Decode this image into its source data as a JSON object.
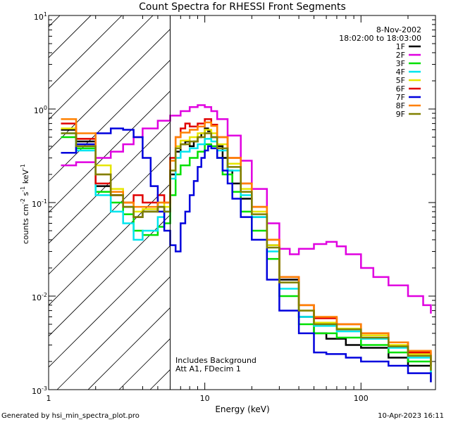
{
  "chart_data": {
    "type": "line",
    "title": "Count Spectra for RHESSI Front Segments",
    "xlabel": "Energy (keV)",
    "ylabel_parts": [
      "counts cm",
      "-2",
      " s",
      "-1",
      " keV",
      "-1"
    ],
    "xscale": "log",
    "yscale": "log",
    "xlim": [
      1,
      300
    ],
    "ylim": [
      0.001,
      10
    ],
    "x_tick_labels": [
      "1",
      "10",
      "100"
    ],
    "y_tick_bases": [
      "10",
      "10",
      "10",
      "10",
      "10"
    ],
    "y_tick_exponents": [
      "-3",
      "-2",
      "-1",
      "0",
      "1"
    ],
    "attenuator_boundary_kev": 6,
    "legend_header": [
      "8-Nov-2002",
      "18:02:00 to 18:03:00"
    ],
    "annotations": [
      "Includes Background",
      "Att A1, FDecim  1"
    ],
    "series": [
      {
        "name": "1F",
        "color": "#000000",
        "x": [
          1.2,
          1.5,
          2,
          2.5,
          3,
          3.5,
          4,
          5,
          5.5,
          6,
          6.5,
          7,
          7.5,
          8,
          8.5,
          9,
          9.5,
          10,
          10.5,
          11,
          12,
          13,
          14,
          15,
          17,
          20,
          25,
          30,
          40,
          50,
          60,
          80,
          100,
          150,
          200,
          280
        ],
        "y": [
          0.6,
          0.45,
          0.15,
          0.12,
          0.09,
          0.07,
          0.08,
          0.09,
          0.08,
          0.2,
          0.35,
          0.42,
          0.45,
          0.4,
          0.45,
          0.5,
          0.55,
          0.62,
          0.58,
          0.5,
          0.4,
          0.3,
          0.22,
          0.16,
          0.11,
          0.07,
          0.035,
          0.015,
          0.006,
          0.004,
          0.0035,
          0.003,
          0.0028,
          0.0022,
          0.0018,
          0.0012
        ]
      },
      {
        "name": "2F",
        "color": "#e000e0",
        "x": [
          1.2,
          1.5,
          2,
          2.5,
          3,
          3.5,
          4,
          5,
          6,
          7,
          8,
          9,
          10,
          11,
          12,
          14,
          17,
          20,
          25,
          30,
          35,
          40,
          50,
          60,
          70,
          80,
          100,
          120,
          150,
          200,
          250,
          280
        ],
        "y": [
          0.25,
          0.27,
          0.3,
          0.35,
          0.42,
          0.5,
          0.62,
          0.75,
          0.85,
          0.95,
          1.05,
          1.1,
          1.05,
          0.95,
          0.78,
          0.52,
          0.28,
          0.14,
          0.06,
          0.032,
          0.028,
          0.032,
          0.036,
          0.038,
          0.034,
          0.028,
          0.02,
          0.016,
          0.013,
          0.01,
          0.008,
          0.0065
        ]
      },
      {
        "name": "3F",
        "color": "#00e000",
        "x": [
          1.2,
          1.5,
          2,
          2.5,
          3,
          3.5,
          4,
          5,
          5.5,
          6,
          6.5,
          7,
          8,
          9,
          10,
          11,
          12,
          13,
          15,
          17,
          20,
          25,
          30,
          40,
          50,
          70,
          100,
          150,
          200,
          280
        ],
        "y": [
          0.5,
          0.38,
          0.13,
          0.1,
          0.075,
          0.05,
          0.045,
          0.055,
          0.06,
          0.12,
          0.2,
          0.25,
          0.3,
          0.35,
          0.42,
          0.4,
          0.3,
          0.2,
          0.13,
          0.08,
          0.05,
          0.025,
          0.01,
          0.005,
          0.004,
          0.0036,
          0.003,
          0.0025,
          0.002,
          0.0015
        ]
      },
      {
        "name": "4F",
        "color": "#00e5ee",
        "x": [
          1.2,
          1.5,
          2,
          2.5,
          3,
          3.5,
          4,
          5,
          5.5,
          6,
          6.5,
          7,
          8,
          9,
          10,
          11,
          12,
          14,
          17,
          20,
          25,
          30,
          40,
          50,
          70,
          100,
          150,
          200,
          280
        ],
        "y": [
          0.55,
          0.36,
          0.12,
          0.08,
          0.06,
          0.04,
          0.05,
          0.07,
          0.08,
          0.18,
          0.3,
          0.35,
          0.38,
          0.42,
          0.48,
          0.45,
          0.36,
          0.22,
          0.12,
          0.07,
          0.03,
          0.012,
          0.006,
          0.0048,
          0.0042,
          0.0035,
          0.0028,
          0.0022,
          0.0015
        ]
      },
      {
        "name": "5F",
        "color": "#e6e600",
        "x": [
          1.2,
          1.5,
          2,
          2.5,
          3,
          3.5,
          4,
          5,
          5.5,
          6,
          6.5,
          7,
          8,
          9,
          10,
          11,
          12,
          14,
          17,
          20,
          25,
          30,
          40,
          50,
          70,
          100,
          150,
          200,
          280
        ],
        "y": [
          0.62,
          0.48,
          0.25,
          0.14,
          0.1,
          0.08,
          0.085,
          0.1,
          0.09,
          0.22,
          0.4,
          0.46,
          0.5,
          0.55,
          0.6,
          0.55,
          0.42,
          0.26,
          0.14,
          0.08,
          0.035,
          0.014,
          0.007,
          0.0052,
          0.0045,
          0.0038,
          0.003,
          0.0024,
          0.0016
        ]
      },
      {
        "name": "6F",
        "color": "#e00000",
        "x": [
          1.2,
          1.5,
          2,
          2.5,
          3,
          3.5,
          4,
          5,
          5.5,
          6,
          6.5,
          7,
          7.5,
          8,
          9,
          10,
          11,
          12,
          14,
          17,
          20,
          25,
          30,
          40,
          50,
          70,
          100,
          150,
          200,
          280
        ],
        "y": [
          0.7,
          0.48,
          0.16,
          0.12,
          0.1,
          0.12,
          0.1,
          0.12,
          0.1,
          0.3,
          0.5,
          0.62,
          0.7,
          0.65,
          0.7,
          0.78,
          0.68,
          0.5,
          0.3,
          0.16,
          0.09,
          0.04,
          0.016,
          0.008,
          0.0058,
          0.005,
          0.004,
          0.0032,
          0.0025,
          0.0018
        ]
      },
      {
        "name": "7F",
        "color": "#0000dd",
        "x": [
          1.2,
          1.5,
          2,
          2.5,
          3,
          3.5,
          4,
          4.5,
          5,
          5.5,
          6,
          6.5,
          7,
          7.5,
          8,
          8.5,
          9,
          9.5,
          10,
          10.5,
          11,
          12,
          13,
          14,
          15,
          17,
          20,
          25,
          30,
          40,
          50,
          60,
          80,
          100,
          150,
          200,
          280
        ],
        "y": [
          0.34,
          0.42,
          0.55,
          0.62,
          0.6,
          0.5,
          0.3,
          0.15,
          0.08,
          0.05,
          0.035,
          0.03,
          0.06,
          0.08,
          0.12,
          0.17,
          0.24,
          0.3,
          0.36,
          0.4,
          0.38,
          0.3,
          0.22,
          0.16,
          0.11,
          0.07,
          0.04,
          0.015,
          0.007,
          0.004,
          0.0025,
          0.0024,
          0.0022,
          0.002,
          0.0018,
          0.0015,
          0.0012
        ]
      },
      {
        "name": "8F",
        "color": "#ff8000",
        "x": [
          1.2,
          1.5,
          2,
          2.5,
          3,
          3.5,
          4,
          5,
          5.5,
          6,
          6.5,
          7,
          8,
          9,
          10,
          11,
          12,
          14,
          17,
          20,
          25,
          30,
          40,
          50,
          70,
          100,
          150,
          200,
          280
        ],
        "y": [
          0.78,
          0.55,
          0.2,
          0.13,
          0.1,
          0.09,
          0.09,
          0.1,
          0.1,
          0.28,
          0.5,
          0.56,
          0.6,
          0.65,
          0.72,
          0.66,
          0.5,
          0.3,
          0.16,
          0.09,
          0.04,
          0.016,
          0.008,
          0.006,
          0.005,
          0.004,
          0.0032,
          0.0026,
          0.0019
        ]
      },
      {
        "name": "9F",
        "color": "#808000",
        "x": [
          1.2,
          1.5,
          2,
          2.5,
          3,
          3.5,
          4,
          5,
          5.5,
          6,
          6.5,
          7,
          8,
          9,
          10,
          11,
          12,
          14,
          17,
          20,
          25,
          30,
          40,
          50,
          70,
          100,
          150,
          200,
          280
        ],
        "y": [
          0.55,
          0.4,
          0.2,
          0.12,
          0.09,
          0.07,
          0.08,
          0.09,
          0.08,
          0.22,
          0.38,
          0.42,
          0.45,
          0.5,
          0.55,
          0.5,
          0.38,
          0.24,
          0.13,
          0.075,
          0.033,
          0.014,
          0.007,
          0.005,
          0.0044,
          0.0036,
          0.0029,
          0.0023,
          0.0016
        ]
      }
    ]
  },
  "footer": {
    "left": "Generated by hsi_min_spectra_plot.pro",
    "right": "10-Apr-2023 16:11"
  }
}
